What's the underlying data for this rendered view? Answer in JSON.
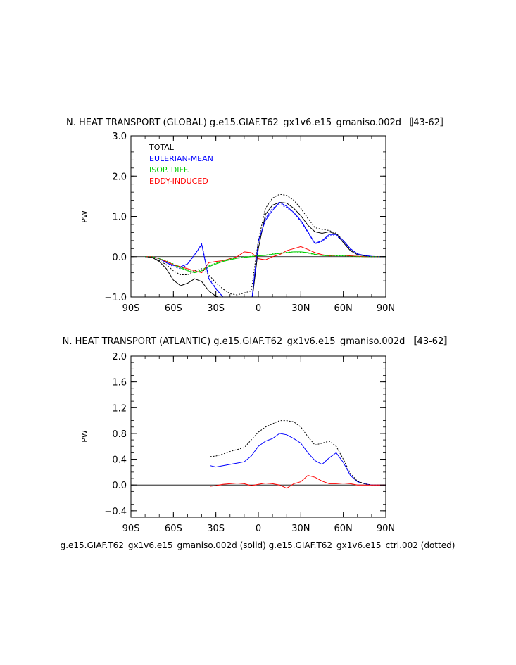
{
  "colors": {
    "total": "#000000",
    "eulerian_mean": "#0000ff",
    "isop_diff": "#00cc00",
    "eddy_induced": "#ff0000",
    "axes": "#000000"
  },
  "footer": {
    "caption": "g.e15.GIAF.T62_gx1v6.e15_gmaniso.002d (solid) g.e15.GIAF.T62_gx1v6.e15_ctrl.002 (dotted)"
  },
  "chart_data": [
    {
      "type": "line",
      "title": "N. HEAT TRANSPORT (GLOBAL) g.e15.GIAF.T62_gx1v6.e15_gmaniso.002d 〚43-62〛",
      "xlabel": "",
      "ylabel": "PW",
      "xlim": [
        -90,
        90
      ],
      "ylim": [
        -1.0,
        3.0
      ],
      "x_ticks": [
        -90,
        -60,
        -30,
        0,
        30,
        60,
        90
      ],
      "x_tick_labels": [
        "90S",
        "60S",
        "30S",
        "0",
        "30N",
        "60N",
        "90N"
      ],
      "y_ticks": [
        -1.0,
        0.0,
        1.0,
        2.0,
        3.0
      ],
      "y_tick_labels": [
        "−1.0",
        "0.0",
        "1.0",
        "2.0",
        "3.0"
      ],
      "zero_line": true,
      "legend": {
        "placement": "top-left",
        "entries": [
          "TOTAL",
          "EULERIAN-MEAN",
          "ISOP. DIFF.",
          "EDDY-INDUCED"
        ]
      },
      "series": [
        {
          "name": "TOTAL",
          "style": "solid",
          "color": "#000000",
          "x": [
            -80,
            -75,
            -70,
            -65,
            -60,
            -55,
            -50,
            -45,
            -40,
            -35,
            -30,
            -25,
            -20,
            -15,
            -10,
            -5,
            0,
            5,
            10,
            15,
            20,
            25,
            30,
            35,
            40,
            45,
            50,
            55,
            60,
            65,
            70,
            75,
            80,
            85,
            90
          ],
          "y": [
            0,
            -0.02,
            -0.12,
            -0.3,
            -0.58,
            -0.72,
            -0.66,
            -0.55,
            -0.62,
            -0.85,
            -0.98,
            -1.05,
            -1.1,
            -1.15,
            -1.2,
            -1.25,
            0.2,
            1.05,
            1.28,
            1.35,
            1.33,
            1.2,
            1.02,
            0.78,
            0.62,
            0.58,
            0.62,
            0.56,
            0.35,
            0.15,
            0.05,
            0.02,
            0,
            0,
            0
          ]
        },
        {
          "name": "EULERIAN-MEAN",
          "style": "solid",
          "color": "#0000ff",
          "x": [
            -80,
            -75,
            -70,
            -65,
            -60,
            -55,
            -50,
            -45,
            -40,
            -35,
            -30,
            -25,
            -20,
            -15,
            -10,
            -5,
            0,
            5,
            10,
            15,
            20,
            25,
            30,
            35,
            40,
            45,
            50,
            55,
            60,
            65,
            70,
            75,
            80,
            85,
            90
          ],
          "y": [
            0,
            0,
            -0.05,
            -0.15,
            -0.22,
            -0.25,
            -0.18,
            0.05,
            0.3,
            -0.55,
            -0.8,
            -1.0,
            -1.15,
            -1.2,
            -1.2,
            -1.2,
            0.4,
            0.9,
            1.15,
            1.35,
            1.25,
            1.1,
            0.9,
            0.62,
            0.33,
            0.4,
            0.55,
            0.55,
            0.4,
            0.2,
            0.07,
            0.03,
            0.01,
            0,
            0
          ]
        },
        {
          "name": "ISOP. DIFF.",
          "style": "solid",
          "color": "#00cc00",
          "x": [
            -80,
            -75,
            -70,
            -65,
            -60,
            -55,
            -50,
            -45,
            -40,
            -35,
            -30,
            -25,
            -20,
            -15,
            -10,
            -5,
            0,
            5,
            10,
            15,
            20,
            25,
            30,
            35,
            40,
            45,
            50,
            55,
            60,
            65,
            70,
            75,
            80,
            85,
            90
          ],
          "y": [
            0,
            0,
            -0.05,
            -0.12,
            -0.2,
            -0.28,
            -0.35,
            -0.4,
            -0.35,
            -0.25,
            -0.18,
            -0.12,
            -0.08,
            -0.04,
            -0.02,
            0,
            0.02,
            0.03,
            0.06,
            0.08,
            0.1,
            0.12,
            0.12,
            0.1,
            0.06,
            0.03,
            0.02,
            0.03,
            0.03,
            0.02,
            0.01,
            0,
            0,
            0,
            0
          ]
        },
        {
          "name": "EDDY-INDUCED",
          "style": "solid",
          "color": "#ff0000",
          "x": [
            -80,
            -75,
            -70,
            -65,
            -60,
            -55,
            -50,
            -45,
            -40,
            -35,
            -30,
            -25,
            -20,
            -15,
            -10,
            -5,
            0,
            5,
            10,
            15,
            20,
            25,
            30,
            35,
            40,
            45,
            50,
            55,
            60,
            65,
            70,
            75,
            80,
            85,
            90
          ],
          "y": [
            0,
            0,
            -0.05,
            -0.12,
            -0.2,
            -0.25,
            -0.3,
            -0.35,
            -0.4,
            -0.15,
            -0.12,
            -0.1,
            -0.05,
            0,
            0.12,
            0.1,
            -0.05,
            -0.08,
            0,
            0.05,
            0.15,
            0.2,
            0.25,
            0.18,
            0.1,
            0.05,
            0.02,
            0.04,
            0.04,
            0.02,
            0.01,
            0,
            0,
            0,
            0
          ]
        },
        {
          "name": "TOTAL (ctrl)",
          "style": "dotted",
          "color": "#000000",
          "x": [
            -80,
            -75,
            -70,
            -65,
            -60,
            -55,
            -50,
            -45,
            -40,
            -35,
            -30,
            -25,
            -20,
            -15,
            -10,
            -5,
            0,
            5,
            10,
            15,
            20,
            25,
            30,
            35,
            40,
            45,
            50,
            55,
            60,
            65,
            70,
            75,
            80,
            85,
            90
          ],
          "y": [
            0,
            -0.02,
            -0.1,
            -0.2,
            -0.35,
            -0.45,
            -0.45,
            -0.35,
            -0.3,
            -0.45,
            -0.65,
            -0.8,
            -0.92,
            -0.95,
            -0.9,
            -0.85,
            0.4,
            1.2,
            1.45,
            1.55,
            1.52,
            1.4,
            1.2,
            0.95,
            0.72,
            0.68,
            0.65,
            0.58,
            0.4,
            0.18,
            0.06,
            0.02,
            0,
            0,
            0
          ]
        },
        {
          "name": "EULERIAN-MEAN (ctrl)",
          "style": "dotted",
          "color": "#0000ff",
          "x": [
            -80,
            -75,
            -70,
            -65,
            -60,
            -55,
            -50,
            -45,
            -40,
            -35,
            -30,
            -25,
            -20,
            -15,
            -10,
            -5,
            0,
            5,
            10,
            15,
            20,
            25,
            30,
            35,
            40,
            45,
            50,
            55,
            60,
            65,
            70,
            75,
            80,
            85,
            90
          ],
          "y": [
            0,
            0,
            -0.05,
            -0.15,
            -0.25,
            -0.3,
            -0.2,
            0.05,
            0.32,
            -0.5,
            -0.78,
            -1.0,
            -1.12,
            -1.2,
            -1.2,
            -1.2,
            0.35,
            0.95,
            1.2,
            1.3,
            1.22,
            1.08,
            0.88,
            0.6,
            0.32,
            0.38,
            0.52,
            0.52,
            0.38,
            0.18,
            0.06,
            0.02,
            0,
            0,
            0
          ]
        },
        {
          "name": "ISOP. DIFF. (ctrl)",
          "style": "dotted",
          "color": "#00cc00",
          "x": [
            -80,
            -75,
            -70,
            -65,
            -60,
            -55,
            -50,
            -45,
            -40,
            -35,
            -30,
            -25,
            -20,
            -15,
            -10,
            -5,
            0,
            5,
            10,
            15,
            20,
            25,
            30,
            35,
            40,
            45,
            50,
            55,
            60,
            65,
            70,
            75,
            80,
            85,
            90
          ],
          "y": [
            0,
            0,
            -0.05,
            -0.1,
            -0.18,
            -0.26,
            -0.33,
            -0.38,
            -0.33,
            -0.23,
            -0.16,
            -0.1,
            -0.06,
            -0.03,
            -0.01,
            0.01,
            0.03,
            0.04,
            0.07,
            0.09,
            0.11,
            0.12,
            0.11,
            0.09,
            0.05,
            0.03,
            0.02,
            0.02,
            0.02,
            0.01,
            0,
            0,
            0,
            0,
            0
          ]
        }
      ]
    },
    {
      "type": "line",
      "title": "N. HEAT TRANSPORT (ATLANTIC) g.e15.GIAF.T62_gx1v6.e15_gmaniso.002d 〚43-62〛",
      "xlabel": "",
      "ylabel": "PW",
      "xlim": [
        -90,
        90
      ],
      "ylim": [
        -0.5,
        2.0
      ],
      "x_ticks": [
        -90,
        -60,
        -30,
        0,
        30,
        60,
        90
      ],
      "x_tick_labels": [
        "90S",
        "60S",
        "30S",
        "0",
        "30N",
        "60N",
        "90N"
      ],
      "y_ticks": [
        -0.4,
        0.0,
        0.4,
        0.8,
        1.2,
        1.6,
        2.0
      ],
      "y_tick_labels": [
        "−0.4",
        "0.0",
        "0.4",
        "0.8",
        "1.2",
        "1.6",
        "2.0"
      ],
      "zero_line": true,
      "series": [
        {
          "name": "EULERIAN-MEAN",
          "style": "solid",
          "color": "#0000ff",
          "x": [
            -34,
            -30,
            -25,
            -20,
            -15,
            -10,
            -5,
            0,
            5,
            10,
            15,
            20,
            25,
            30,
            35,
            40,
            45,
            50,
            55,
            60,
            65,
            70,
            75,
            80,
            85,
            90
          ],
          "y": [
            0.3,
            0.28,
            0.3,
            0.32,
            0.34,
            0.36,
            0.45,
            0.6,
            0.68,
            0.72,
            0.8,
            0.78,
            0.72,
            0.65,
            0.5,
            0.38,
            0.32,
            0.42,
            0.5,
            0.35,
            0.15,
            0.05,
            0.02,
            0,
            0,
            0
          ]
        },
        {
          "name": "TOTAL (ctrl)",
          "style": "dotted",
          "color": "#000000",
          "x": [
            -34,
            -30,
            -25,
            -20,
            -15,
            -10,
            -5,
            0,
            5,
            10,
            15,
            20,
            25,
            30,
            35,
            40,
            45,
            50,
            55,
            60,
            65,
            70,
            75,
            80,
            85,
            90
          ],
          "y": [
            0.44,
            0.45,
            0.48,
            0.52,
            0.55,
            0.58,
            0.7,
            0.82,
            0.9,
            0.95,
            1.0,
            1.0,
            0.98,
            0.9,
            0.75,
            0.62,
            0.65,
            0.68,
            0.6,
            0.4,
            0.18,
            0.06,
            0.02,
            0,
            0,
            0
          ]
        },
        {
          "name": "EDDY-INDUCED",
          "style": "solid",
          "color": "#ff0000",
          "x": [
            -34,
            -30,
            -25,
            -20,
            -15,
            -10,
            -5,
            0,
            5,
            10,
            15,
            20,
            25,
            30,
            35,
            40,
            45,
            50,
            55,
            60,
            65,
            70,
            75,
            80,
            85,
            90
          ],
          "y": [
            -0.02,
            -0.01,
            0.01,
            0.02,
            0.03,
            0.02,
            -0.01,
            0.01,
            0.03,
            0.02,
            0,
            -0.05,
            0.02,
            0.05,
            0.15,
            0.12,
            0.06,
            0.02,
            0.02,
            0.03,
            0.02,
            0,
            0,
            0,
            0,
            0
          ]
        }
      ]
    }
  ]
}
